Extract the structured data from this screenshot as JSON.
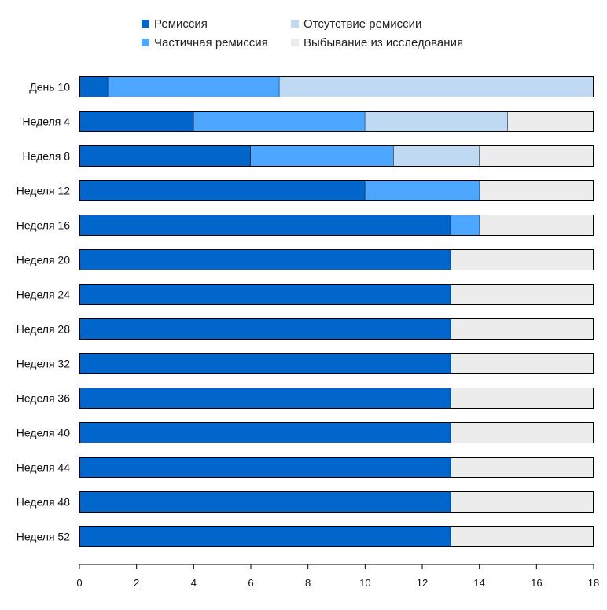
{
  "chart_data": {
    "type": "bar",
    "orientation": "horizontal",
    "stacked": true,
    "categories": [
      "День 10",
      "Неделя 4",
      "Неделя 8",
      "Неделя 12",
      "Неделя 16",
      "Неделя 20",
      "Неделя 24",
      "Неделя 28",
      "Неделя 32",
      "Неделя 36",
      "Неделя 40",
      "Неделя 44",
      "Неделя 48",
      "Неделя 52"
    ],
    "series": [
      {
        "name": "Ремиссия",
        "color": "#0066cc",
        "values": [
          1,
          4,
          6,
          10,
          13,
          13,
          13,
          13,
          13,
          13,
          13,
          13,
          13,
          13
        ]
      },
      {
        "name": "Частичная ремиссия",
        "color": "#4da6ff",
        "values": [
          6,
          6,
          5,
          4,
          1,
          0,
          0,
          0,
          0,
          0,
          0,
          0,
          0,
          0
        ]
      },
      {
        "name": "Отсутствие ремиссии",
        "color": "#bfd9f2",
        "values": [
          11,
          5,
          3,
          0,
          0,
          0,
          0,
          0,
          0,
          0,
          0,
          0,
          0,
          0
        ]
      },
      {
        "name": "Выбывание из исследования",
        "color": "#ececec",
        "values": [
          0,
          3,
          4,
          4,
          4,
          5,
          5,
          5,
          5,
          5,
          5,
          5,
          5,
          5
        ]
      }
    ],
    "xlim": [
      0,
      18
    ],
    "xticks": [
      0,
      2,
      4,
      6,
      8,
      10,
      12,
      14,
      16,
      18
    ],
    "xlabel": "",
    "ylabel": "",
    "grid": false,
    "legend_position": "top"
  }
}
